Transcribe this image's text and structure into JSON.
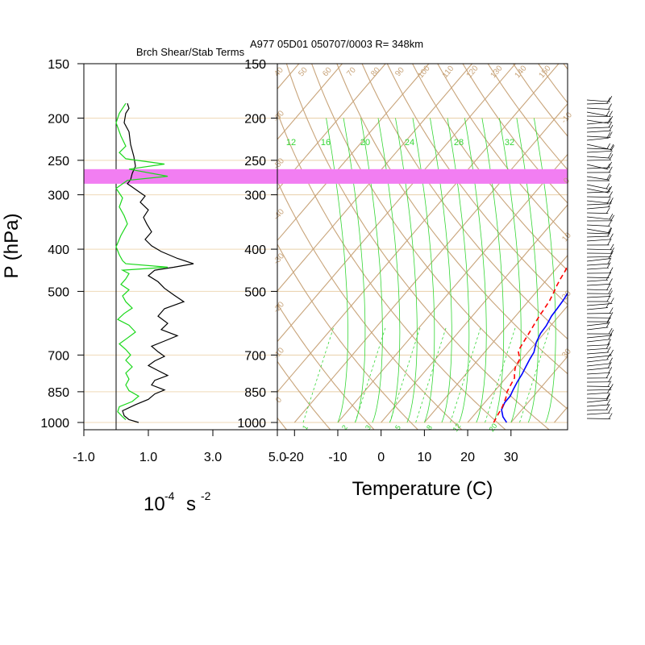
{
  "page": {
    "title": "A977 05D01 050707/0003 R= 348km",
    "left_panel_title": "Brch Shear/Stab Terms"
  },
  "chart_data": [
    {
      "type": "line",
      "panel": "left",
      "title": "Brch Shear/Stab Terms",
      "ylabel": "P (hPa)",
      "xlabel_base": "10",
      "xlabel_exp": "-4",
      "xlabel_unit": "s",
      "xlabel_unit_exp": "-2",
      "xlim": [
        -1.0,
        5.0
      ],
      "ylim": [
        1000,
        150
      ],
      "yscale": "log",
      "x_ticks": [
        "-1.0",
        "1.0",
        "3.0",
        "5.0"
      ],
      "y_ticks": [
        "150",
        "200",
        "250",
        "300",
        "400",
        "500",
        "700",
        "850",
        "1000"
      ],
      "highlight_band_hpa": [
        262,
        283
      ],
      "highlight_color": "#f27ef2",
      "zero_line_x": 0,
      "colors": {
        "black_series": "#000000",
        "green_series": "#1bd81b"
      },
      "series": [
        {
          "color": "black",
          "points": [
            [
              0.35,
              185
            ],
            [
              0.4,
              190
            ],
            [
              0.3,
              195
            ],
            [
              0.25,
              205
            ],
            [
              0.4,
              215
            ],
            [
              0.45,
              230
            ],
            [
              0.55,
              245
            ],
            [
              0.6,
              258
            ],
            [
              0.5,
              268
            ],
            [
              0.45,
              277
            ],
            [
              0.35,
              283
            ],
            [
              0.5,
              288
            ],
            [
              0.7,
              295
            ],
            [
              0.9,
              302
            ],
            [
              0.75,
              312
            ],
            [
              1.0,
              325
            ],
            [
              0.85,
              338
            ],
            [
              0.95,
              350
            ],
            [
              1.1,
              365
            ],
            [
              0.9,
              380
            ],
            [
              1.1,
              393
            ],
            [
              1.4,
              405
            ],
            [
              1.9,
              420
            ],
            [
              2.4,
              432
            ],
            [
              1.8,
              440
            ],
            [
              1.2,
              447
            ],
            [
              1.0,
              460
            ],
            [
              1.3,
              475
            ],
            [
              1.5,
              492
            ],
            [
              1.8,
              510
            ],
            [
              2.1,
              528
            ],
            [
              1.5,
              548
            ],
            [
              1.3,
              570
            ],
            [
              1.6,
              592
            ],
            [
              1.4,
              612
            ],
            [
              1.9,
              632
            ],
            [
              1.5,
              650
            ],
            [
              1.1,
              668
            ],
            [
              1.3,
              688
            ],
            [
              1.5,
              705
            ],
            [
              1.2,
              722
            ],
            [
              1.0,
              740
            ],
            [
              1.3,
              760
            ],
            [
              1.6,
              780
            ],
            [
              1.2,
              800
            ],
            [
              1.1,
              820
            ],
            [
              1.5,
              842
            ],
            [
              1.2,
              860
            ],
            [
              1.0,
              885
            ],
            [
              0.6,
              910
            ],
            [
              0.2,
              940
            ],
            [
              0.25,
              965
            ],
            [
              0.4,
              985
            ],
            [
              0.7,
              1000
            ]
          ]
        },
        {
          "color": "green",
          "points": [
            [
              0.3,
              185
            ],
            [
              0.1,
              195
            ],
            [
              0.0,
              205
            ],
            [
              0.15,
              220
            ],
            [
              0.3,
              232
            ],
            [
              0.1,
              240
            ],
            [
              0.3,
              248
            ],
            [
              1.5,
              255
            ],
            [
              0.4,
              262
            ],
            [
              1.6,
              272
            ],
            [
              0.35,
              278
            ],
            [
              0.0,
              290
            ],
            [
              0.2,
              305
            ],
            [
              0.1,
              320
            ],
            [
              0.25,
              335
            ],
            [
              0.35,
              350
            ],
            [
              0.15,
              372
            ],
            [
              0.0,
              395
            ],
            [
              0.1,
              412
            ],
            [
              0.2,
              425
            ],
            [
              0.3,
              432
            ],
            [
              1.6,
              440
            ],
            [
              0.2,
              447
            ],
            [
              0.4,
              455
            ],
            [
              0.3,
              468
            ],
            [
              0.15,
              482
            ],
            [
              0.4,
              496
            ],
            [
              0.2,
              512
            ],
            [
              0.3,
              528
            ],
            [
              0.5,
              546
            ],
            [
              0.25,
              562
            ],
            [
              0.05,
              580
            ],
            [
              0.4,
              598
            ],
            [
              0.6,
              620
            ],
            [
              0.35,
              640
            ],
            [
              0.1,
              660
            ],
            [
              0.3,
              680
            ],
            [
              0.45,
              700
            ],
            [
              0.3,
              720
            ],
            [
              0.5,
              745
            ],
            [
              0.3,
              770
            ],
            [
              0.4,
              795
            ],
            [
              0.3,
              820
            ],
            [
              0.4,
              845
            ],
            [
              0.7,
              870
            ],
            [
              0.5,
              895
            ],
            [
              0.1,
              920
            ],
            [
              0.05,
              945
            ],
            [
              0.2,
              970
            ],
            [
              0.3,
              985
            ]
          ]
        }
      ]
    },
    {
      "type": "line",
      "panel": "right",
      "title": "A977 05D01 050707/0003 R= 348km",
      "xlabel": "Temperature (C)",
      "xlim": [
        -24,
        40
      ],
      "ylim": [
        1000,
        150
      ],
      "yscale": "log",
      "x_ticks": [
        "-20",
        "-10",
        "0",
        "10",
        "20",
        "30"
      ],
      "y_ticks": [
        "150",
        "200",
        "250",
        "300",
        "400",
        "500",
        "700",
        "850",
        "1000"
      ],
      "skew_c_per_log_unit": 86.2,
      "colors": {
        "temperature": "#0000ff",
        "dewpoint": "#ff0000",
        "isotherm_adiabat": "#c8a47a",
        "moist_guides": "#35d635",
        "highlight": "#f27ef2"
      },
      "isotherm_labels": [
        "-60",
        "-50",
        "-40",
        "-30",
        "-20",
        "-10",
        "0",
        "10",
        "20"
      ],
      "dry_adiabat_labels": [
        "40",
        "50",
        "60",
        "70",
        "80",
        "90",
        "100",
        "110",
        "120",
        "130",
        "140",
        "150"
      ],
      "moist_top_labels": [
        "12",
        "16",
        "20",
        "24",
        "28",
        "32"
      ],
      "mixing_ratio_labels": [
        "1",
        "2",
        "3",
        "5",
        "8",
        "12",
        "20"
      ],
      "series": [
        {
          "name": "Temperature",
          "color": "blue",
          "style": "solid",
          "points": [
            [
              29,
              1000
            ],
            [
              27,
              970
            ],
            [
              25.3,
              935
            ],
            [
              24.6,
              900
            ],
            [
              24.6,
              870
            ],
            [
              24.0,
              840
            ],
            [
              23.4,
              805
            ],
            [
              23.0,
              775
            ],
            [
              22.4,
              745
            ],
            [
              21.8,
              715
            ],
            [
              21.4,
              690
            ],
            [
              20.0,
              655
            ],
            [
              19.2,
              625
            ],
            [
              19.0,
              600
            ],
            [
              18.3,
              570
            ],
            [
              18.1,
              545
            ],
            [
              17.9,
              525
            ],
            [
              17.4,
              500
            ],
            [
              16.6,
              475
            ],
            [
              16.0,
              450
            ],
            [
              15.7,
              430
            ],
            [
              15.0,
              415
            ],
            [
              14.1,
              395
            ],
            [
              12.9,
              375
            ],
            [
              11.8,
              355
            ],
            [
              10.4,
              335
            ],
            [
              9.5,
              320
            ],
            [
              8.4,
              305
            ],
            [
              7.3,
              290
            ],
            [
              6.2,
              275
            ],
            [
              5.4,
              265
            ],
            [
              4.0,
              250
            ],
            [
              2.0,
              230
            ],
            [
              0.0,
              212
            ],
            [
              -1.8,
              198
            ],
            [
              -3.0,
              188
            ],
            [
              -4.2,
              178
            ]
          ]
        },
        {
          "name": "Dewpoint",
          "color": "red",
          "style": "dashed",
          "points": [
            [
              26,
              1000
            ],
            [
              25.5,
              965
            ],
            [
              25,
              925
            ],
            [
              24,
              880
            ],
            [
              23,
              850
            ],
            [
              22.5,
              820
            ],
            [
              22,
              790
            ],
            [
              21,
              770
            ],
            [
              20,
              745
            ],
            [
              19.5,
              715
            ],
            [
              17.5,
              685
            ],
            [
              17,
              655
            ],
            [
              16.5,
              625
            ],
            [
              16,
              598
            ],
            [
              15.5,
              570
            ],
            [
              15.2,
              548
            ],
            [
              14.8,
              525
            ],
            [
              14.2,
              505
            ],
            [
              13.5,
              485
            ],
            [
              13,
              468
            ],
            [
              12.5,
              448
            ],
            [
              11.5,
              425
            ],
            [
              10,
              408
            ],
            [
              8.5,
              395
            ],
            [
              7,
              378
            ],
            [
              5.5,
              362
            ],
            [
              4,
              350
            ],
            [
              5,
              340
            ],
            [
              7,
              335
            ],
            [
              6.5,
              322
            ],
            [
              7.5,
              310
            ],
            [
              5,
              300
            ],
            [
              2.5,
              292
            ],
            [
              0.5,
              283
            ],
            [
              1.5,
              275
            ],
            [
              3,
              265
            ],
            [
              4,
              255
            ],
            [
              2.5,
              245
            ],
            [
              1,
              235
            ],
            [
              -0.5,
              225
            ],
            [
              -1.5,
              215
            ],
            [
              -4,
              208
            ],
            [
              -7,
              201
            ]
          ]
        }
      ]
    }
  ]
}
